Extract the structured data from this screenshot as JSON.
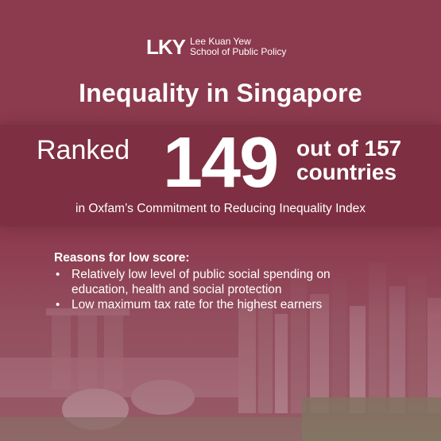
{
  "logo": {
    "mark": "LKY",
    "line1": "Lee Kuan Yew",
    "line2": "School of Public Policy"
  },
  "title": "Inequality in Singapore",
  "ranking": {
    "ranked_word": "Ranked",
    "rank": "149",
    "out_of_line1": "out of 157",
    "out_of_line2": "countries",
    "index_line": "in Oxfam’s Commitment to Reducing Inequality Index"
  },
  "reasons": {
    "heading": "Reasons for low score:",
    "items": [
      "Relatively low level of public social spending on education, health and social protection",
      "Low maximum tax rate for the highest earners"
    ]
  },
  "colors": {
    "background": "#8c3a4d",
    "band": "#7e2f41",
    "text": "#ffffff"
  }
}
